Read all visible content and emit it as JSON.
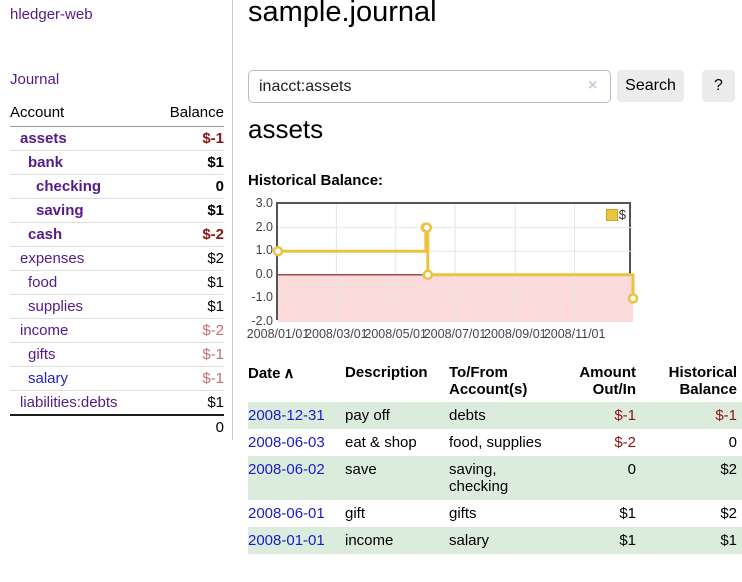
{
  "app": {
    "brand": "hledger-web",
    "nav_journal": "Journal"
  },
  "sidebar": {
    "columns": {
      "account": "Account",
      "balance": "Balance"
    },
    "rows": [
      {
        "account": "assets",
        "balance": "$-1",
        "depth": 1,
        "bold": true,
        "neg": "strong"
      },
      {
        "account": "bank",
        "balance": "$1",
        "depth": 2,
        "bold": true,
        "neg": ""
      },
      {
        "account": "checking",
        "balance": "0",
        "depth": 3,
        "bold": true,
        "neg": ""
      },
      {
        "account": "saving",
        "balance": "$1",
        "depth": 3,
        "bold": true,
        "neg": ""
      },
      {
        "account": "cash",
        "balance": "$-2",
        "depth": 2,
        "bold": true,
        "neg": "strong"
      },
      {
        "account": "expenses",
        "balance": "$2",
        "depth": 1,
        "bold": false,
        "neg": ""
      },
      {
        "account": "food",
        "balance": "$1",
        "depth": 2,
        "bold": false,
        "neg": ""
      },
      {
        "account": "supplies",
        "balance": "$1",
        "depth": 2,
        "bold": false,
        "neg": ""
      },
      {
        "account": "income",
        "balance": "$-2",
        "depth": 1,
        "bold": false,
        "neg": "soft"
      },
      {
        "account": "gifts",
        "balance": "$-1",
        "depth": 2,
        "bold": false,
        "neg": "soft"
      },
      {
        "account": "salary",
        "balance": "$-1",
        "depth": 2,
        "bold": false,
        "neg": "soft",
        "link": "blue"
      },
      {
        "account": "liabilities:debts",
        "balance": "$1",
        "depth": 1,
        "bold": false,
        "neg": ""
      }
    ],
    "total": "0"
  },
  "header": {
    "title": "sample.journal"
  },
  "search": {
    "value": "inacct:assets",
    "clear_icon": "×",
    "button": "Search",
    "help_button": "?"
  },
  "account_page": {
    "heading": "assets",
    "chart_label": "Historical Balance:"
  },
  "chart_data": {
    "type": "line",
    "step": true,
    "title": "Historical Balance:",
    "series": [
      {
        "name": "$",
        "color": "#edc240",
        "points": [
          [
            "2008-01-01",
            1
          ],
          [
            "2008-06-01",
            2
          ],
          [
            "2008-06-02",
            2
          ],
          [
            "2008-06-03",
            0
          ],
          [
            "2008-12-31",
            -1
          ]
        ]
      }
    ],
    "xrange": [
      "2008-01-01",
      "2008-12-31"
    ],
    "ylim": [
      -2,
      3
    ],
    "yticks": [
      "3.0",
      "2.0",
      "1.0",
      "0.0",
      "-1.0",
      "-2.0"
    ],
    "xticks": [
      "2008/01/01",
      "2008/03/01",
      "2008/05/01",
      "2008/07/01",
      "2008/09/01",
      "2008/11/01"
    ],
    "legend": {
      "position": "top-right",
      "label": "$"
    },
    "grid": true,
    "negative_region": {
      "fill": "#fbdada",
      "zero_line_color": "#8b1111"
    }
  },
  "register": {
    "headers": {
      "date": "Date",
      "sort_icon": "∧",
      "description": "Description",
      "tofrom": "To/From\nAccount(s)",
      "amount": "Amount\nOut/In",
      "balance": "Historical\nBalance"
    },
    "rows": [
      {
        "date": "2008-12-31",
        "description": "pay off",
        "accounts": "debts",
        "amount": "$-1",
        "amount_negative": true,
        "balance": "$-1",
        "balance_negative": true
      },
      {
        "date": "2008-06-03",
        "description": "eat & shop",
        "accounts": "food, supplies",
        "amount": "$-2",
        "amount_negative": true,
        "balance": "0",
        "balance_negative": false
      },
      {
        "date": "2008-06-02",
        "description": "save",
        "accounts": "saving,\nchecking",
        "amount": "0",
        "amount_negative": false,
        "balance": "$2",
        "balance_negative": false
      },
      {
        "date": "2008-06-01",
        "description": "gift",
        "accounts": "gifts",
        "amount": "$1",
        "amount_negative": false,
        "balance": "$2",
        "balance_negative": false
      },
      {
        "date": "2008-01-01",
        "description": "income",
        "accounts": "salary",
        "amount": "$1",
        "amount_negative": false,
        "balance": "$1",
        "balance_negative": false
      }
    ]
  },
  "colors": {
    "purple": "#551a8b",
    "blue": "#1a1acc",
    "neg_strong": "#8b1414",
    "neg_soft": "#c06f6f",
    "row_green": "#dcecdc",
    "series": "#edc240"
  }
}
